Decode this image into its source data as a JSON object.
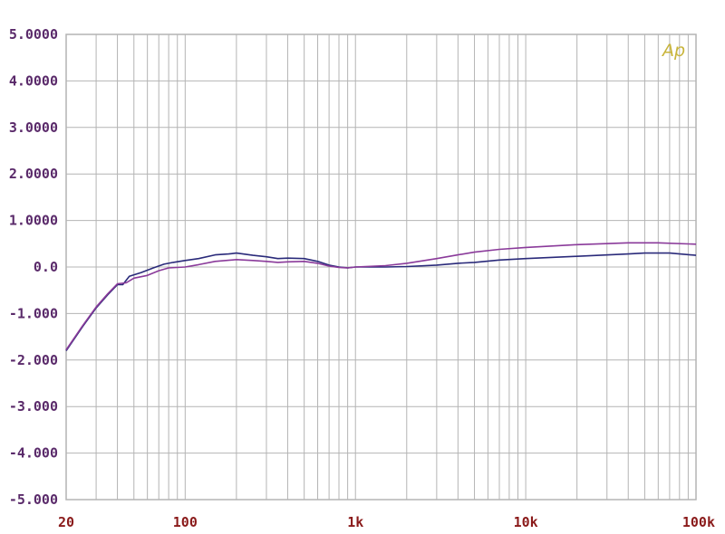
{
  "chart_data": {
    "type": "line",
    "x_scale": "log",
    "xlim": [
      20,
      100000
    ],
    "ylim": [
      -5,
      5
    ],
    "grid": true,
    "legend": "none",
    "x_ticks": [
      {
        "value": 20,
        "label": "20"
      },
      {
        "value": 100,
        "label": "100"
      },
      {
        "value": 1000,
        "label": "1k"
      },
      {
        "value": 10000,
        "label": "10k"
      },
      {
        "value": 100000,
        "label": "100k"
      }
    ],
    "y_ticks": [
      {
        "value": 5,
        "label": "5.0000"
      },
      {
        "value": 4,
        "label": "4.0000"
      },
      {
        "value": 3,
        "label": "3.0000"
      },
      {
        "value": 2,
        "label": "2.0000"
      },
      {
        "value": 1,
        "label": "1.0000"
      },
      {
        "value": 0,
        "label": "0.0"
      },
      {
        "value": -1,
        "label": "-1.000"
      },
      {
        "value": -2,
        "label": "-2.000"
      },
      {
        "value": -3,
        "label": "-3.000"
      },
      {
        "value": -4,
        "label": "-4.000"
      },
      {
        "value": -5,
        "label": "-5.000"
      }
    ],
    "series": [
      {
        "color": "#2a2a7a",
        "points": [
          [
            20,
            -1.8
          ],
          [
            25,
            -1.28
          ],
          [
            30,
            -0.88
          ],
          [
            35,
            -0.6
          ],
          [
            40,
            -0.38
          ],
          [
            43,
            -0.38
          ],
          [
            47,
            -0.2
          ],
          [
            55,
            -0.12
          ],
          [
            65,
            -0.02
          ],
          [
            75,
            0.06
          ],
          [
            85,
            0.1
          ],
          [
            100,
            0.14
          ],
          [
            120,
            0.18
          ],
          [
            150,
            0.26
          ],
          [
            180,
            0.28
          ],
          [
            200,
            0.3
          ],
          [
            250,
            0.25
          ],
          [
            300,
            0.22
          ],
          [
            350,
            0.18
          ],
          [
            400,
            0.19
          ],
          [
            500,
            0.18
          ],
          [
            600,
            0.12
          ],
          [
            700,
            0.04
          ],
          [
            800,
            0.0
          ],
          [
            900,
            -0.02
          ],
          [
            1000,
            0.0
          ],
          [
            1500,
            0.0
          ],
          [
            2000,
            0.01
          ],
          [
            3000,
            0.04
          ],
          [
            4000,
            0.08
          ],
          [
            5000,
            0.1
          ],
          [
            7000,
            0.15
          ],
          [
            10000,
            0.18
          ],
          [
            20000,
            0.23
          ],
          [
            40000,
            0.28
          ],
          [
            50000,
            0.3
          ],
          [
            70000,
            0.3
          ],
          [
            100000,
            0.25
          ]
        ]
      },
      {
        "color": "#8a3a9a",
        "points": [
          [
            20,
            -1.78
          ],
          [
            25,
            -1.26
          ],
          [
            30,
            -0.86
          ],
          [
            35,
            -0.58
          ],
          [
            40,
            -0.36
          ],
          [
            45,
            -0.34
          ],
          [
            50,
            -0.24
          ],
          [
            60,
            -0.18
          ],
          [
            70,
            -0.08
          ],
          [
            80,
            -0.02
          ],
          [
            100,
            0.0
          ],
          [
            120,
            0.05
          ],
          [
            150,
            0.12
          ],
          [
            200,
            0.16
          ],
          [
            250,
            0.14
          ],
          [
            300,
            0.12
          ],
          [
            350,
            0.1
          ],
          [
            400,
            0.11
          ],
          [
            500,
            0.12
          ],
          [
            600,
            0.08
          ],
          [
            700,
            0.02
          ],
          [
            800,
            -0.01
          ],
          [
            900,
            -0.02
          ],
          [
            1000,
            0.0
          ],
          [
            1500,
            0.03
          ],
          [
            2000,
            0.08
          ],
          [
            3000,
            0.18
          ],
          [
            4000,
            0.26
          ],
          [
            5000,
            0.32
          ],
          [
            7000,
            0.38
          ],
          [
            10000,
            0.42
          ],
          [
            20000,
            0.48
          ],
          [
            40000,
            0.52
          ],
          [
            60000,
            0.52
          ],
          [
            100000,
            0.49
          ]
        ]
      }
    ]
  },
  "logo": {
    "text": "Ap",
    "color": "#c8b43a"
  },
  "colors": {
    "grid": "#b4b4b4",
    "ytick": "#5a2a6a",
    "xtick": "#8a1a1a",
    "frame": "#b4b4b4"
  }
}
